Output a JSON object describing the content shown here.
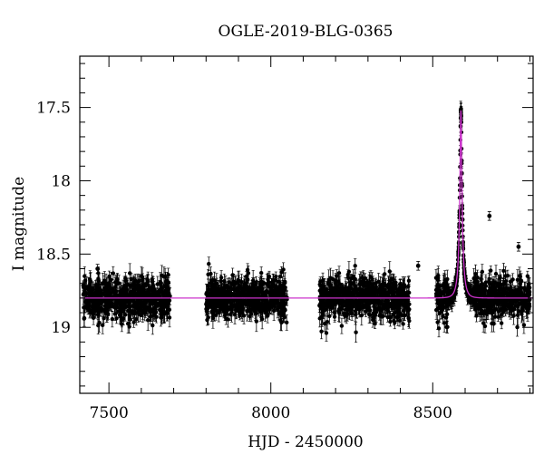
{
  "chart_data": {
    "type": "scatter",
    "title": "OGLE-2019-BLG-0365",
    "xlabel": "HJD - 2450000",
    "ylabel": "I magnitude",
    "xlim": [
      7410,
      8810
    ],
    "ylim": [
      19.45,
      17.15
    ],
    "y_inverted": true,
    "x_ticks": [
      7500,
      8000,
      8500
    ],
    "x_tick_labels": [
      "7500",
      "8000",
      "8500"
    ],
    "y_ticks": [
      17.5,
      18,
      18.5,
      19
    ],
    "y_tick_labels": [
      "17.5",
      "18",
      "18.5",
      "19"
    ],
    "grid": false,
    "colors": {
      "data": "#000000",
      "model": "#cc33cc"
    },
    "series": [
      {
        "kind": "points-with-errorbars",
        "seasons": [
          {
            "x_range": [
              7420,
              7690
            ],
            "mean_mag": 18.8,
            "scatter": 0.07,
            "typical_error": 0.05
          },
          {
            "x_range": [
              7800,
              8050
            ],
            "mean_mag": 18.8,
            "scatter": 0.07,
            "typical_error": 0.05
          },
          {
            "x_range": [
              8150,
              8430
            ],
            "mean_mag": 18.8,
            "scatter": 0.07,
            "typical_error": 0.05
          },
          {
            "x_range": [
              8510,
              8800
            ],
            "mean_mag": 18.8,
            "scatter": 0.07,
            "typical_error": 0.05
          }
        ],
        "outliers": [
          {
            "x": 8675,
            "y": 18.24
          },
          {
            "x": 8765,
            "y": 18.45
          },
          {
            "x": 8455,
            "y": 18.58
          },
          {
            "x": 7465,
            "y": 18.6
          }
        ]
      },
      {
        "kind": "model-curve",
        "baseline_mag": 18.8,
        "peak_x": 8587,
        "peak_mag": 17.52,
        "timescale": 14,
        "u0": 0.21
      }
    ]
  }
}
